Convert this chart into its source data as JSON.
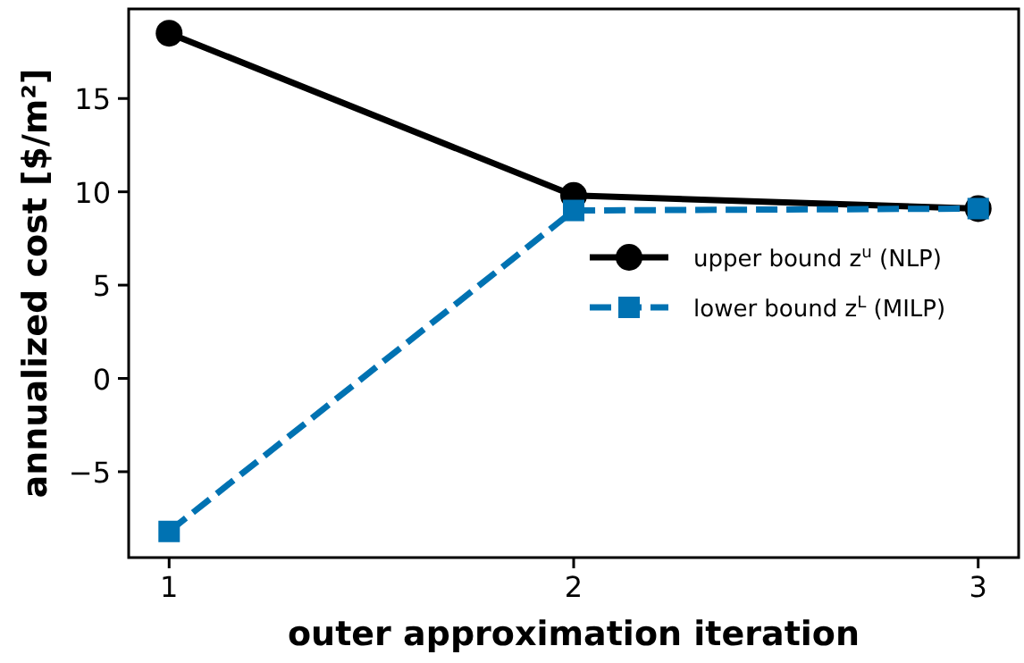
{
  "chart_data": {
    "type": "line",
    "xlabel": "outer approximation iteration",
    "ylabel": "annualized cost [$/m²]",
    "x": [
      1,
      2,
      3
    ],
    "xlim": [
      0.9,
      3.1
    ],
    "xticks": [
      1,
      2,
      3
    ],
    "ylim": [
      -9.6,
      19.8
    ],
    "yticks": [
      -5,
      0,
      5,
      10,
      15
    ],
    "legend": "right",
    "grid": false,
    "series": [
      {
        "name": "upper bound z$^{u}$ (NLP)",
        "color": "#000000",
        "values": [
          18.5,
          9.8,
          9.1
        ],
        "marker": "circle",
        "line_style": "solid"
      },
      {
        "name": "lower bound z$^{L}$ (MILP)",
        "color": "#0072b2",
        "values": [
          -8.2,
          9.0,
          9.1
        ],
        "marker": "square",
        "line_style": "dashed"
      }
    ]
  }
}
